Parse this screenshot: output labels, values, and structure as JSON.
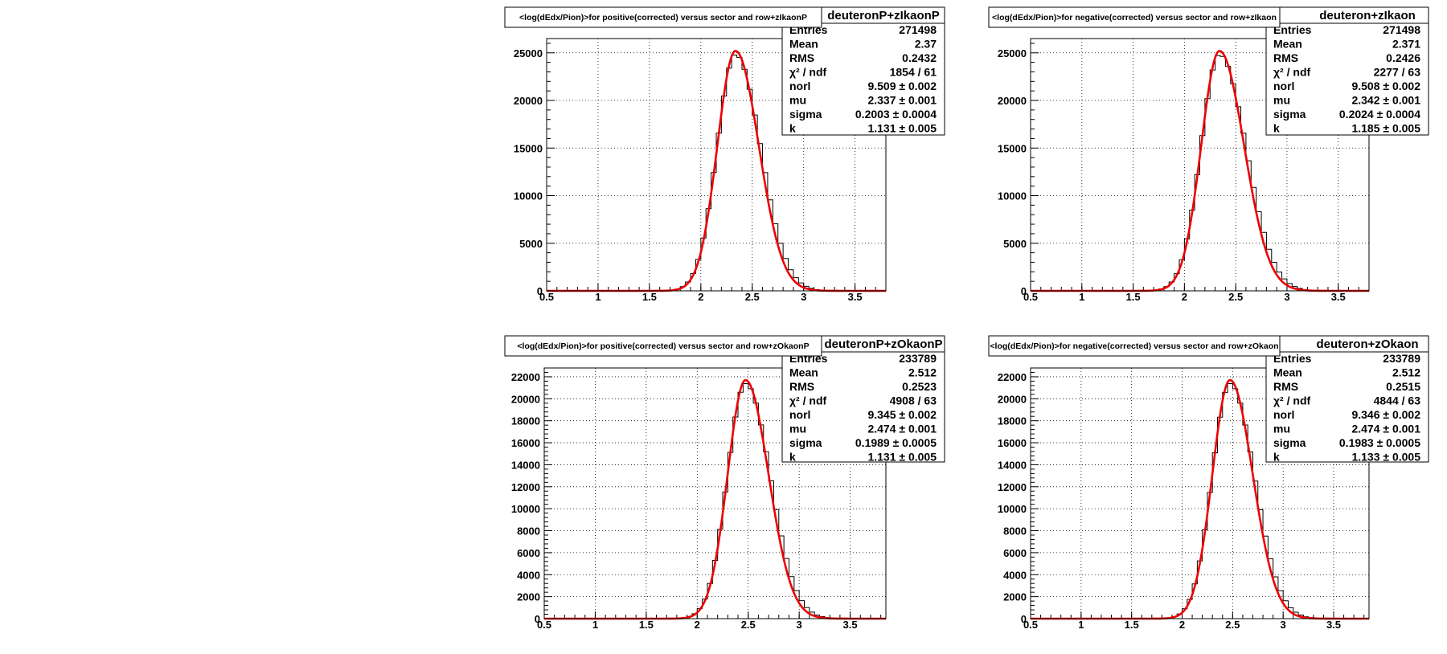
{
  "colors": {
    "fit": "#ee0000",
    "hist": "#000000",
    "grid": "#000000",
    "frame": "#000000"
  },
  "chart_data": [
    {
      "type": "histogram",
      "title": "<log(dEdx/Pion)>for positive(corrected) versus sector and row+zIkaonP",
      "stats_name": "deuteronP+zIkaonP",
      "stats": [
        {
          "label": "Entries",
          "value": "271498"
        },
        {
          "label": "Mean",
          "value": "2.37"
        },
        {
          "label": "RMS",
          "value": "0.2432"
        },
        {
          "label": "χ² / ndf",
          "value": "1854 / 61"
        },
        {
          "label": "norl",
          "value": "9.509 ± 0.002"
        },
        {
          "label": "mu",
          "value": "2.337 ± 0.001"
        },
        {
          "label": "sigma",
          "value": "0.2003 ± 0.0004"
        },
        {
          "label": "k",
          "value": "1.131 ± 0.005"
        }
      ],
      "xlim": [
        0.5,
        3.8
      ],
      "ylim": [
        0,
        26500
      ],
      "xticks": [
        0.5,
        1,
        1.5,
        2,
        2.5,
        3,
        3.5
      ],
      "xtick_labels": [
        "0.5",
        "1",
        "1.5",
        "2",
        "2.5",
        "3",
        "3.5"
      ],
      "yticks": [
        0,
        5000,
        10000,
        15000,
        20000,
        25000
      ],
      "ytick_labels": [
        "0",
        "5000",
        "10000",
        "15000",
        "20000",
        "25000"
      ],
      "grid": true,
      "peak": 25200,
      "mu": 2.337,
      "sigma": 0.2003,
      "k": 1.131,
      "bin_width": 0.05
    },
    {
      "type": "histogram",
      "title": "<log(dEdx/Pion)>for negative(corrected) versus sector and row+zIkaon",
      "stats_name": "deuteron+zIkaon",
      "stats": [
        {
          "label": "Entries",
          "value": "271498"
        },
        {
          "label": "Mean",
          "value": "2.371"
        },
        {
          "label": "RMS",
          "value": "0.2426"
        },
        {
          "label": "χ² / ndf",
          "value": "2277 / 63"
        },
        {
          "label": "norl",
          "value": "9.508 ± 0.002"
        },
        {
          "label": "mu",
          "value": "2.342 ± 0.001"
        },
        {
          "label": "sigma",
          "value": "0.2024 ± 0.0004"
        },
        {
          "label": "k",
          "value": "1.185 ± 0.005"
        }
      ],
      "xlim": [
        0.5,
        3.8
      ],
      "ylim": [
        0,
        26500
      ],
      "xticks": [
        0.5,
        1,
        1.5,
        2,
        2.5,
        3,
        3.5
      ],
      "xtick_labels": [
        "0.5",
        "1",
        "1.5",
        "2",
        "2.5",
        "3",
        "3.5"
      ],
      "yticks": [
        0,
        5000,
        10000,
        15000,
        20000,
        25000
      ],
      "ytick_labels": [
        "0",
        "5000",
        "10000",
        "15000",
        "20000",
        "25000"
      ],
      "grid": true,
      "peak": 25200,
      "mu": 2.342,
      "sigma": 0.2024,
      "k": 1.185,
      "bin_width": 0.05
    },
    {
      "type": "histogram",
      "title": "<log(dEdx/Pion)>for positive(corrected) versus sector and row+zOkaonP",
      "stats_name": "deuteronP+zOkaonP",
      "stats": [
        {
          "label": "Entries",
          "value": "233789"
        },
        {
          "label": "Mean",
          "value": "2.512"
        },
        {
          "label": "RMS",
          "value": "0.2523"
        },
        {
          "label": "χ² / ndf",
          "value": "4908 / 63"
        },
        {
          "label": "norl",
          "value": "9.345 ± 0.002"
        },
        {
          "label": "mu",
          "value": "2.474 ± 0.001"
        },
        {
          "label": "sigma",
          "value": "0.1989 ± 0.0005"
        },
        {
          "label": "k",
          "value": "1.131 ± 0.005"
        }
      ],
      "xlim": [
        0.5,
        3.85
      ],
      "ylim": [
        0,
        22800
      ],
      "xticks": [
        0.5,
        1,
        1.5,
        2,
        2.5,
        3,
        3.5
      ],
      "xtick_labels": [
        "0.5",
        "1",
        "1.5",
        "2",
        "2.5",
        "3",
        "3.5"
      ],
      "yticks": [
        0,
        2000,
        4000,
        6000,
        8000,
        10000,
        12000,
        14000,
        16000,
        18000,
        20000,
        22000
      ],
      "ytick_labels": [
        "0",
        "2000",
        "4000",
        "6000",
        "8000",
        "10000",
        "12000",
        "14000",
        "16000",
        "18000",
        "20000",
        "22000"
      ],
      "grid": true,
      "peak": 21700,
      "mu": 2.474,
      "sigma": 0.1989,
      "k": 1.131,
      "bin_width": 0.05
    },
    {
      "type": "histogram",
      "title": "<log(dEdx/Pion)>for negative(corrected) versus sector and row+zOkaon",
      "stats_name": "deuteron+zOkaon",
      "stats": [
        {
          "label": "Entries",
          "value": "233789"
        },
        {
          "label": "Mean",
          "value": "2.512"
        },
        {
          "label": "RMS",
          "value": "0.2515"
        },
        {
          "label": "χ² / ndf",
          "value": "4844 / 63"
        },
        {
          "label": "norl",
          "value": "9.346 ± 0.002"
        },
        {
          "label": "mu",
          "value": "2.474 ± 0.001"
        },
        {
          "label": "sigma",
          "value": "0.1983 ± 0.0005"
        },
        {
          "label": "k",
          "value": "1.133 ± 0.005"
        }
      ],
      "xlim": [
        0.5,
        3.85
      ],
      "ylim": [
        0,
        22800
      ],
      "xticks": [
        0.5,
        1,
        1.5,
        2,
        2.5,
        3,
        3.5
      ],
      "xtick_labels": [
        "0.5",
        "1",
        "1.5",
        "2",
        "2.5",
        "3",
        "3.5"
      ],
      "yticks": [
        0,
        2000,
        4000,
        6000,
        8000,
        10000,
        12000,
        14000,
        16000,
        18000,
        20000,
        22000
      ],
      "ytick_labels": [
        "0",
        "2000",
        "4000",
        "6000",
        "8000",
        "10000",
        "12000",
        "14000",
        "16000",
        "18000",
        "20000",
        "22000"
      ],
      "grid": true,
      "peak": 21700,
      "mu": 2.474,
      "sigma": 0.1983,
      "k": 1.133,
      "bin_width": 0.05
    }
  ]
}
